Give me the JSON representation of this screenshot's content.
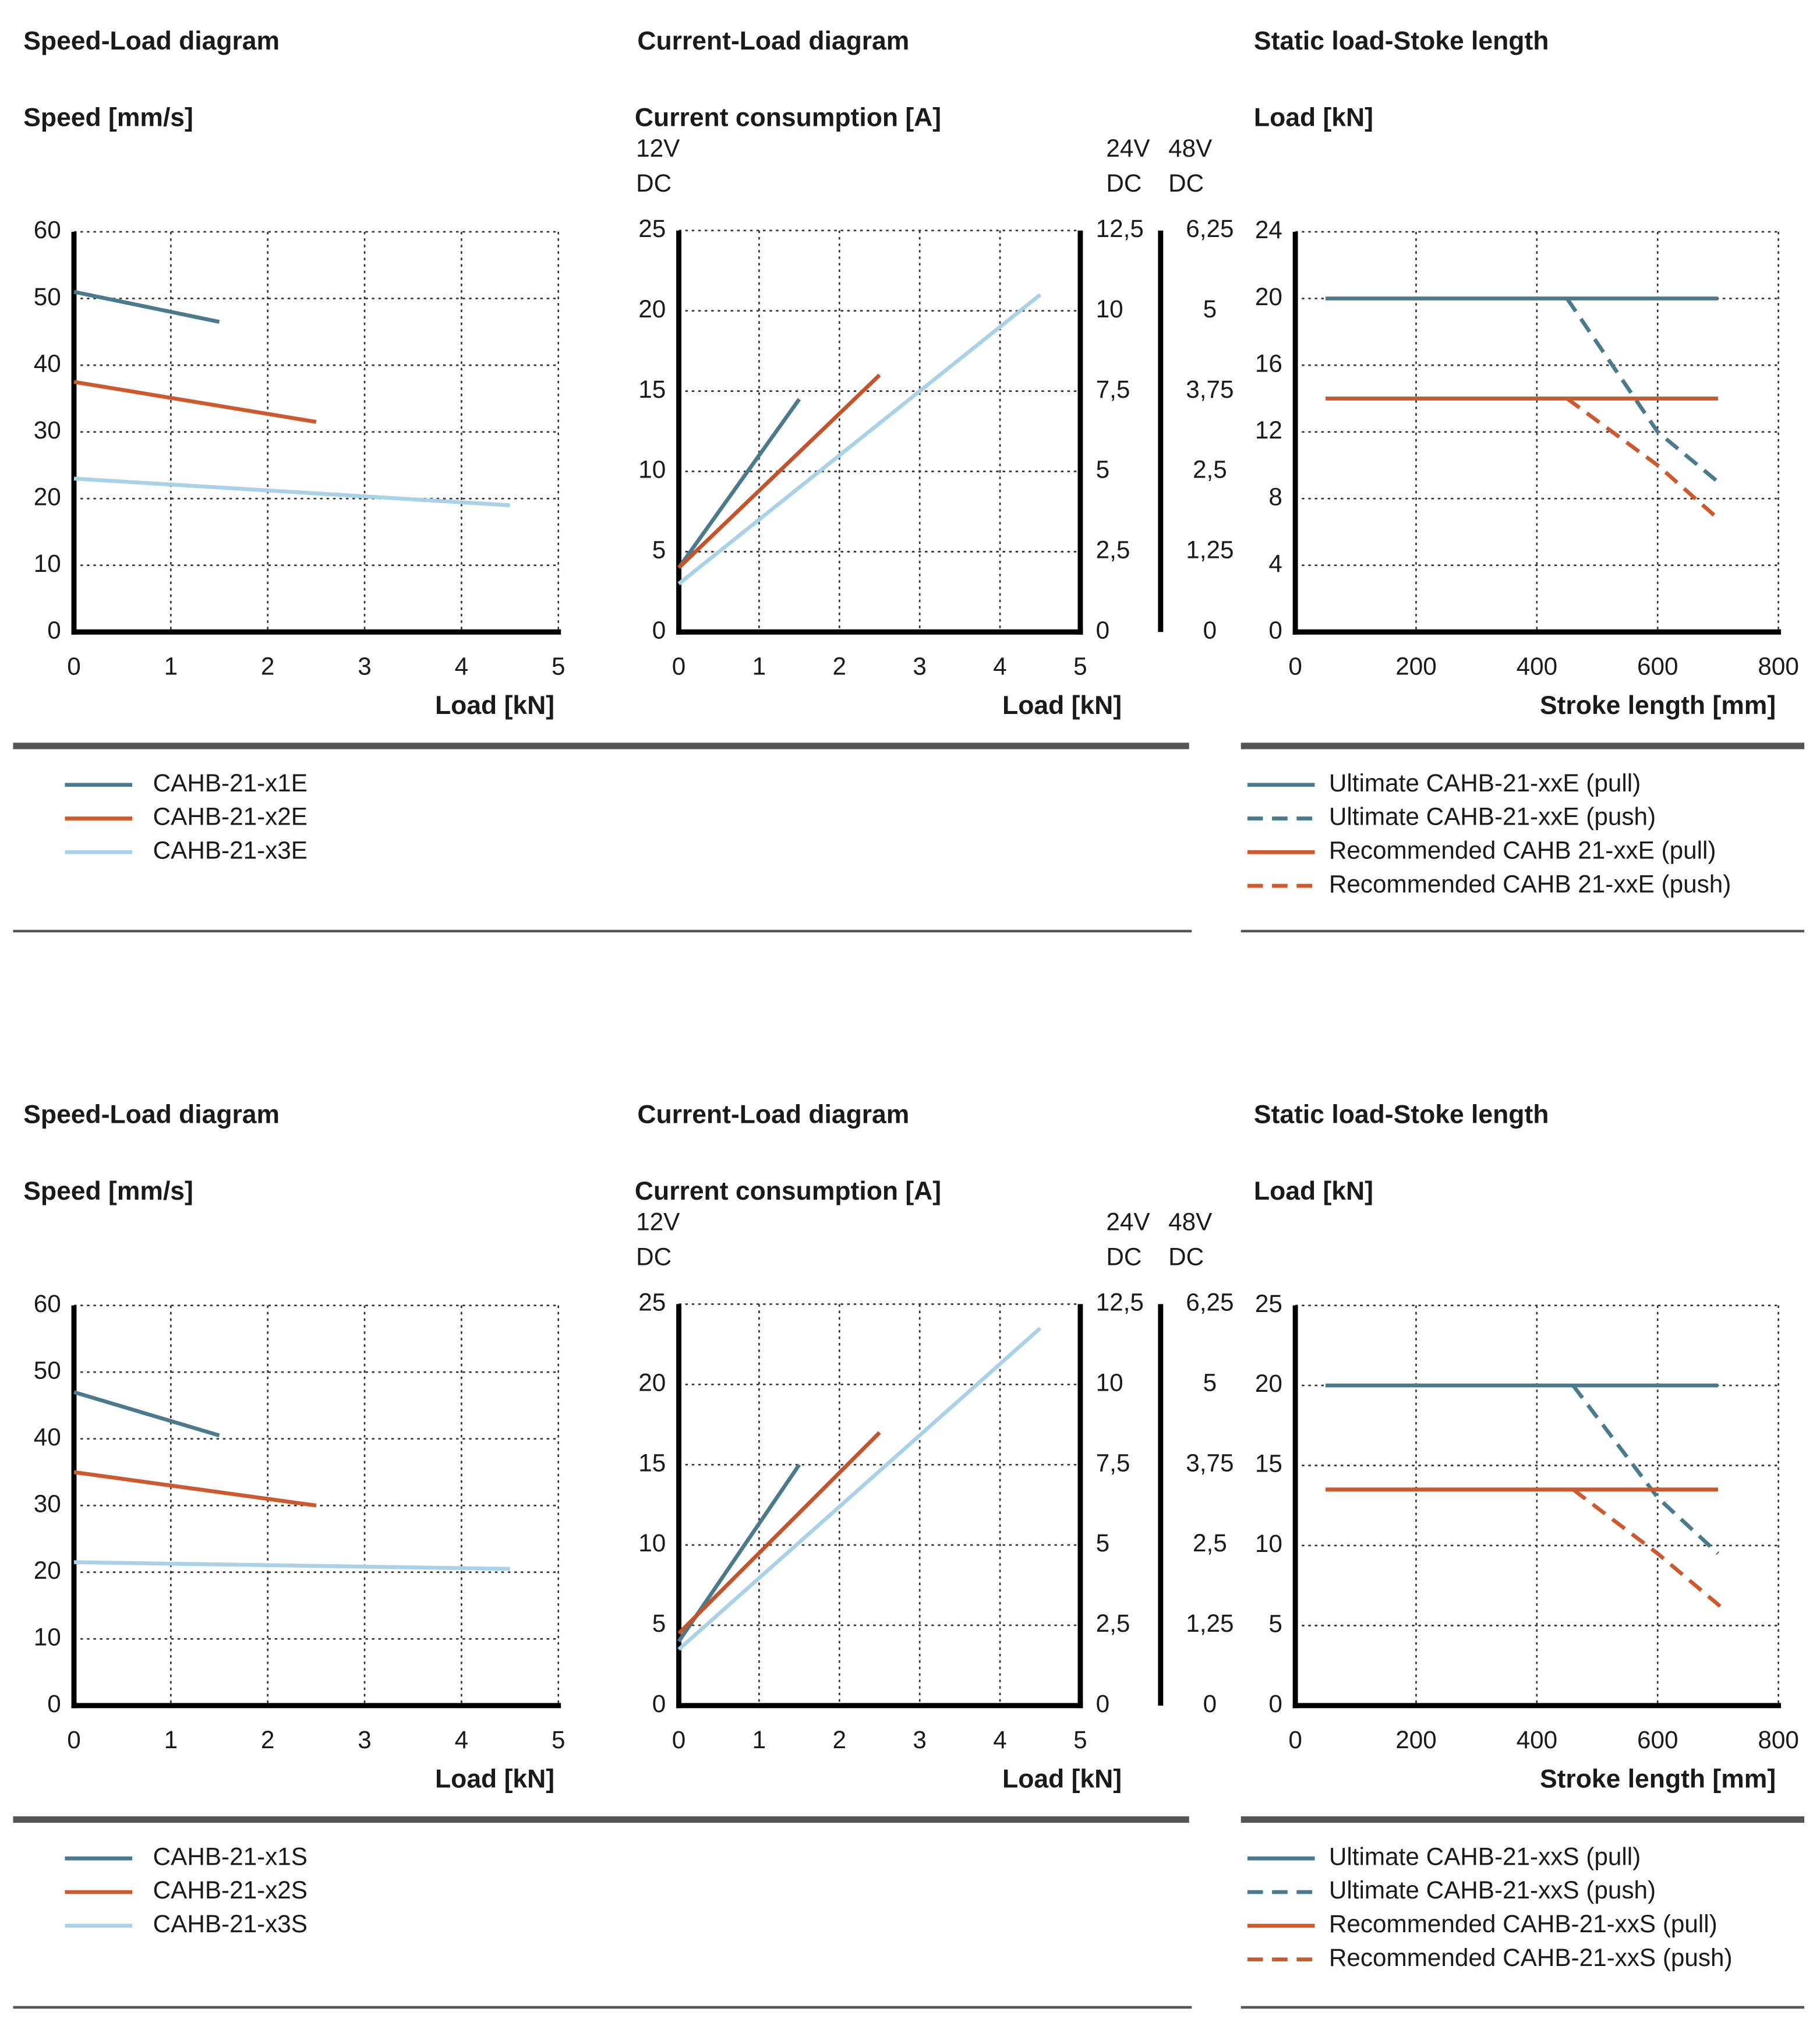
{
  "chart_data": [
    {
      "type": "line",
      "title": "Speed-Load diagram",
      "y_label": "Speed [mm/s]",
      "x_label": "Load [kN]",
      "xlim": [
        0,
        5
      ],
      "xticks": [
        0,
        1,
        2,
        3,
        4,
        5
      ],
      "ylim": [
        0,
        60
      ],
      "yticks": [
        0,
        10,
        20,
        30,
        40,
        50,
        60
      ],
      "grid": true,
      "legend": "below",
      "series": [
        {
          "name": "CAHB-21-x1E",
          "color": "#4a7a8c",
          "x": [
            0,
            1.5
          ],
          "values": [
            51,
            46.5
          ]
        },
        {
          "name": "CAHB-21-x2E",
          "color": "#cc5a2e",
          "x": [
            0,
            2.5
          ],
          "values": [
            37.5,
            31.5
          ]
        },
        {
          "name": "CAHB-21-x3E",
          "color": "#a9d2e8",
          "x": [
            0,
            4.5
          ],
          "values": [
            23,
            19
          ]
        }
      ]
    },
    {
      "type": "line",
      "title": "Current-Load diagram",
      "y_label": "Current consumption [A]",
      "x_label": "Load [kN]",
      "y_unit_labels": [
        [
          "12V",
          "DC"
        ],
        [
          "24V",
          "DC"
        ],
        [
          "48V",
          "DC"
        ]
      ],
      "xlim": [
        0,
        5
      ],
      "xticks": [
        0,
        1,
        2,
        3,
        4,
        5
      ],
      "ylim": [
        0,
        25
      ],
      "yticks": [
        0,
        5,
        10,
        15,
        20,
        25
      ],
      "y2lim": [
        0,
        12.5
      ],
      "y2ticks": [
        0,
        {
          "value": 2.5,
          "label": "2,5"
        },
        5,
        {
          "value": 7.5,
          "label": "7,5"
        },
        10,
        {
          "value": 12.5,
          "label": "12,5"
        }
      ],
      "y3lim": [
        0,
        6.25
      ],
      "y3ticks": [
        0,
        {
          "value": 1.25,
          "label": "1,25"
        },
        {
          "value": 2.5,
          "label": "2,5"
        },
        {
          "value": 3.75,
          "label": "3,75"
        },
        5,
        {
          "value": 6.25,
          "label": "6,25"
        }
      ],
      "grid": true,
      "series": [
        {
          "color": "#4a7a8c",
          "x": [
            0,
            1.5
          ],
          "values": [
            4,
            14.5
          ]
        },
        {
          "color": "#c4522a",
          "x": [
            0,
            2.5
          ],
          "values": [
            4,
            16
          ]
        },
        {
          "color": "#a9d2e8",
          "x": [
            0,
            4.5
          ],
          "values": [
            3,
            21
          ]
        }
      ]
    },
    {
      "type": "line",
      "title": "Static load-Stoke length",
      "y_label": "Load [kN]",
      "x_label": "Stroke length [mm]",
      "xlim": [
        0,
        800
      ],
      "xticks": [
        0,
        200,
        400,
        600,
        800
      ],
      "ylim": [
        0,
        24
      ],
      "yticks": [
        0,
        4,
        8,
        12,
        16,
        20,
        24
      ],
      "grid": true,
      "legend": "below",
      "series": [
        {
          "name": "Ultimate CAHB-21-xxE (pull)",
          "color": "#4a7a8c",
          "style": "solid",
          "x": [
            50,
            700
          ],
          "values": [
            20,
            20
          ]
        },
        {
          "name": "Ultimate CAHB-21-xxE (push)",
          "color": "#4a7a8c",
          "style": "dashed",
          "x": [
            450,
            600,
            700
          ],
          "values": [
            20,
            12,
            9
          ]
        },
        {
          "name": "Recommended CAHB 21-xxE (pull)",
          "color": "#cc5a2e",
          "style": "solid",
          "x": [
            50,
            700
          ],
          "values": [
            14,
            14
          ]
        },
        {
          "name": "Recommended CAHB 21-xxE (push)",
          "color": "#cc5a2e",
          "style": "dashed",
          "x": [
            450,
            600,
            700
          ],
          "values": [
            14,
            10,
            6.8
          ]
        }
      ]
    },
    {
      "type": "line",
      "title": "Speed-Load diagram",
      "y_label": "Speed [mm/s]",
      "x_label": "Load [kN]",
      "xlim": [
        0,
        5
      ],
      "xticks": [
        0,
        1,
        2,
        3,
        4,
        5
      ],
      "ylim": [
        0,
        60
      ],
      "yticks": [
        0,
        10,
        20,
        30,
        40,
        50,
        60
      ],
      "grid": true,
      "legend": "below",
      "series": [
        {
          "name": "CAHB-21-x1S",
          "color": "#4a7a8c",
          "x": [
            0,
            1.5
          ],
          "values": [
            47,
            40.5
          ]
        },
        {
          "name": "CAHB-21-x2S",
          "color": "#cc5a2e",
          "x": [
            0,
            2.5
          ],
          "values": [
            35,
            30
          ]
        },
        {
          "name": "CAHB-21-x3S",
          "color": "#a9d2e8",
          "x": [
            0,
            4.5
          ],
          "values": [
            21.5,
            20.5
          ]
        }
      ]
    },
    {
      "type": "line",
      "title": "Current-Load diagram",
      "y_label": "Current consumption [A]",
      "x_label": "Load [kN]",
      "y_unit_labels": [
        [
          "12V",
          "DC"
        ],
        [
          "24V",
          "DC"
        ],
        [
          "48V",
          "DC"
        ]
      ],
      "xlim": [
        0,
        5
      ],
      "xticks": [
        0,
        1,
        2,
        3,
        4,
        5
      ],
      "ylim": [
        0,
        25
      ],
      "yticks": [
        0,
        5,
        10,
        15,
        20,
        25
      ],
      "y2lim": [
        0,
        12.5
      ],
      "y2ticks": [
        0,
        {
          "value": 2.5,
          "label": "2,5"
        },
        5,
        {
          "value": 7.5,
          "label": "7,5"
        },
        10,
        {
          "value": 12.5,
          "label": "12,5"
        }
      ],
      "y3lim": [
        0,
        6.25
      ],
      "y3ticks": [
        0,
        {
          "value": 1.25,
          "label": "1,25"
        },
        {
          "value": 2.5,
          "label": "2,5"
        },
        {
          "value": 3.75,
          "label": "3,75"
        },
        5,
        {
          "value": 6.25,
          "label": "6,25"
        }
      ],
      "grid": true,
      "series": [
        {
          "color": "#4a7a8c",
          "x": [
            0,
            1.5
          ],
          "values": [
            4,
            15
          ]
        },
        {
          "color": "#c4522a",
          "x": [
            0,
            2.5
          ],
          "values": [
            4.5,
            17
          ]
        },
        {
          "color": "#a9d2e8",
          "x": [
            0,
            4.5
          ],
          "values": [
            3.5,
            23.5
          ]
        }
      ]
    },
    {
      "type": "line",
      "title": "Static load-Stoke length",
      "y_label": "Load [kN]",
      "x_label": "Stroke length [mm]",
      "xlim": [
        0,
        800
      ],
      "xticks": [
        0,
        200,
        400,
        600,
        800
      ],
      "ylim": [
        0,
        25
      ],
      "yticks": [
        0,
        5,
        10,
        15,
        20,
        25
      ],
      "grid": true,
      "legend": "below",
      "series": [
        {
          "name": "Ultimate CAHB-21-xxS (pull)",
          "color": "#4a7a8c",
          "style": "solid",
          "x": [
            50,
            700
          ],
          "values": [
            20,
            20
          ]
        },
        {
          "name": "Ultimate CAHB-21-xxS (push)",
          "color": "#4a7a8c",
          "style": "dashed",
          "x": [
            460,
            600,
            700
          ],
          "values": [
            20,
            13,
            9.5
          ]
        },
        {
          "name": "Recommended CAHB-21-xxS (pull)",
          "color": "#cc5a2e",
          "style": "solid",
          "x": [
            50,
            700
          ],
          "values": [
            13.5,
            13.5
          ]
        },
        {
          "name": "Recommended CAHB-21-xxS (push)",
          "color": "#cc5a2e",
          "style": "dashed",
          "x": [
            460,
            600,
            710
          ],
          "values": [
            13.5,
            9.5,
            6
          ]
        }
      ]
    }
  ]
}
